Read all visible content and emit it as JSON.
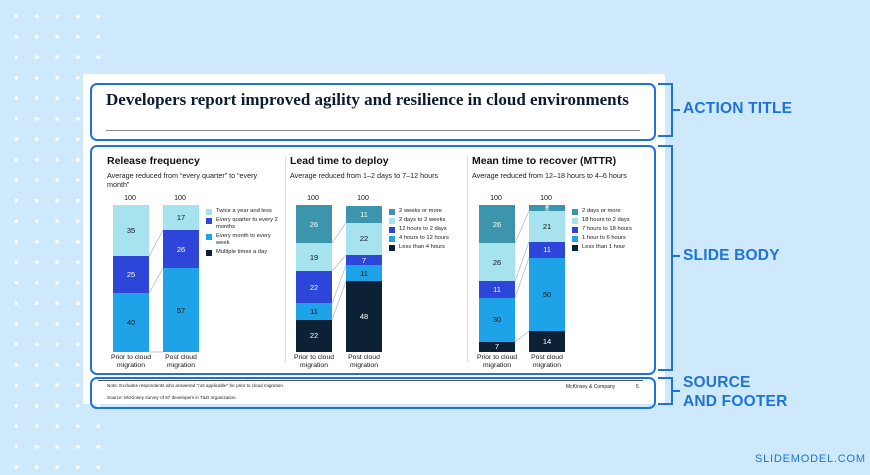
{
  "slide": {
    "title": "Developers report improved agility and resilience in cloud environments",
    "note": "Note: Excludes respondents who answered \"not applicable\" for prior to cloud migration.",
    "source": "Source: McKinsey survey of 67 developers in T&D organization",
    "company": "McKinsey & Company",
    "page_number": "5"
  },
  "callouts": {
    "action_title": "ACTION TITLE",
    "slide_body": "SLIDE BODY",
    "source_footer_line1": "SOURCE",
    "source_footer_line2": "AND FOOTER"
  },
  "brand": "SLIDEMODEL.COM",
  "colors": {
    "accent": "#1f73d6",
    "background": "#cde9fb",
    "palette_light_to_dark": [
      "#3d94ad",
      "#a6e3ef",
      "#2d45d8",
      "#1fa3e8",
      "#0c2136"
    ]
  },
  "chart_data": [
    {
      "type": "bar",
      "stacked": true,
      "title": "Release frequency",
      "subtitle": "Average reduced from “every quarter” to “every month”",
      "categories": [
        "Prior to cloud migration",
        "Post cloud migration"
      ],
      "totals": [
        "100",
        "100"
      ],
      "series": [
        {
          "name": "Multiple times a day",
          "color": "#0c2136",
          "values": [
            0,
            0
          ]
        },
        {
          "name": "Every month to every week",
          "color": "#1fa3e8",
          "values": [
            40,
            57
          ]
        },
        {
          "name": "Every quarter to every 2 months",
          "color": "#2d45d8",
          "values": [
            25,
            26
          ]
        },
        {
          "name": "Twice a year and less",
          "color": "#a6e3ef",
          "values": [
            35,
            17
          ]
        }
      ],
      "legend_order": [
        "Twice a year and less",
        "Every quarter to every 2 months",
        "Every month to every week",
        "Multiple times a day"
      ],
      "ylim": [
        0,
        100
      ]
    },
    {
      "type": "bar",
      "stacked": true,
      "title": "Lead time to deploy",
      "subtitle": "Average reduced from 1–2 days to 7–12 hours",
      "categories": [
        "Prior to cloud migration",
        "Post cloud migration"
      ],
      "totals": [
        "100",
        "100"
      ],
      "series": [
        {
          "name": "Less than 4 hours",
          "color": "#0c2136",
          "values": [
            22,
            48
          ]
        },
        {
          "name": "4 hours to 12 hours",
          "color": "#1fa3e8",
          "values": [
            11,
            11
          ]
        },
        {
          "name": "12 hours to 2 days",
          "color": "#2d45d8",
          "values": [
            22,
            7
          ]
        },
        {
          "name": "2 days to 2 weeks",
          "color": "#a6e3ef",
          "values": [
            19,
            22
          ]
        },
        {
          "name": "2 weeks or more",
          "color": "#3d94ad",
          "values": [
            26,
            11
          ]
        }
      ],
      "legend_order": [
        "2 weeks or more",
        "2 days to 2 weeks",
        "12 hours to 2 days",
        "4 hours to 12 hours",
        "Less than 4 hours"
      ],
      "ylim": [
        0,
        100
      ]
    },
    {
      "type": "bar",
      "stacked": true,
      "title": "Mean time to recover (MTTR)",
      "subtitle": "Average reduced from 12–18 hours to 4–6 hours",
      "categories": [
        "Prior to cloud migration",
        "Post cloud migration"
      ],
      "totals": [
        "100",
        "100"
      ],
      "series": [
        {
          "name": "Less than 1 hour",
          "color": "#0c2136",
          "values": [
            7,
            14
          ]
        },
        {
          "name": "1 hour to 6 hours",
          "color": "#1fa3e8",
          "values": [
            30,
            50
          ]
        },
        {
          "name": "7 hours to 18 hours",
          "color": "#2d45d8",
          "values": [
            11,
            11
          ]
        },
        {
          "name": "18 hours to 2 days",
          "color": "#a6e3ef",
          "values": [
            26,
            21
          ]
        },
        {
          "name": "2 days or more",
          "color": "#3d94ad",
          "values": [
            26,
            4
          ]
        }
      ],
      "legend_order": [
        "2 days or more",
        "18 hours to 2 days",
        "7 hours to 18 hours",
        "1 hour to 6 hours",
        "Less than 1 hour"
      ],
      "ylim": [
        0,
        100
      ]
    }
  ]
}
